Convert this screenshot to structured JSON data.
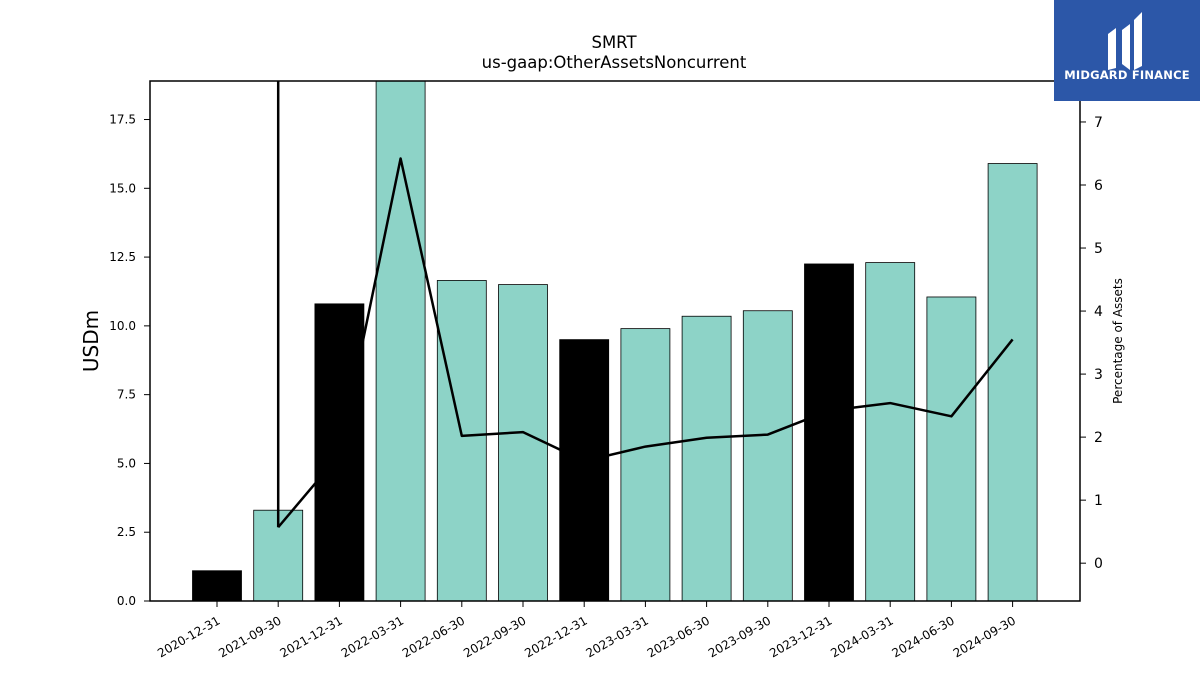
{
  "chart_data": {
    "type": "bar",
    "title": "SMRT",
    "subtitle": "us-gaap:OtherAssetsNoncurrent",
    "ylabel": "USDm",
    "ylabel_right": "Percentage of Assets",
    "ylim": [
      0,
      18.9
    ],
    "ylim_right": [
      -0.6,
      7.65
    ],
    "yticks": [
      "0.0",
      "2.5",
      "5.0",
      "7.5",
      "10.0",
      "12.5",
      "15.0",
      "17.5"
    ],
    "yticks_right": [
      "0",
      "1",
      "2",
      "3",
      "4",
      "5",
      "6",
      "7"
    ],
    "categories": [
      "2020-12-31",
      "2021-09-30",
      "2021-12-31",
      "2022-03-31",
      "2022-06-30",
      "2022-09-30",
      "2022-12-31",
      "2023-03-31",
      "2023-06-30",
      "2023-09-30",
      "2023-12-31",
      "2024-03-31",
      "2024-06-30",
      "2024-09-30"
    ],
    "series": [
      {
        "values": [
          1.1,
          3.3,
          10.8,
          18.9,
          11.65,
          11.5,
          9.5,
          9.9,
          10.35,
          10.55,
          12.25,
          12.3,
          11.05,
          15.9
        ],
        "colors": [
          "#000000",
          "#8dd3c7",
          "#000000",
          "#8dd3c7",
          "#8dd3c7",
          "#8dd3c7",
          "#000000",
          "#8dd3c7",
          "#8dd3c7",
          "#8dd3c7",
          "#000000",
          "#8dd3c7",
          "#8dd3c7",
          "#8dd3c7"
        ]
      },
      {
        "type": "line",
        "axis": "right",
        "values": [
          null,
          0.57,
          1.72,
          6.42,
          2.02,
          2.08,
          1.62,
          1.85,
          1.99,
          2.04,
          2.42,
          2.54,
          2.33,
          3.55
        ],
        "top_segment": [
          7.65,
          0.57
        ]
      }
    ]
  },
  "logo": {
    "text": "MIDGARD FINANCE",
    "color": "#2c57a8"
  }
}
